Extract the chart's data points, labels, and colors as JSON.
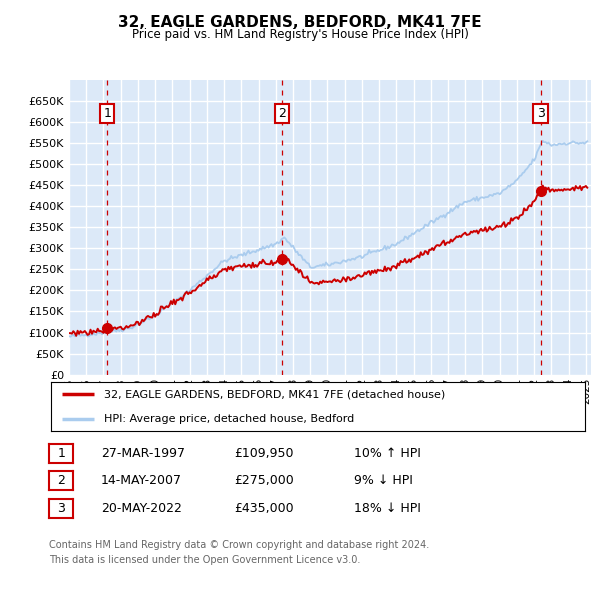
{
  "title": "32, EAGLE GARDENS, BEDFORD, MK41 7FE",
  "subtitle": "Price paid vs. HM Land Registry's House Price Index (HPI)",
  "legend_line1": "32, EAGLE GARDENS, BEDFORD, MK41 7FE (detached house)",
  "legend_line2": "HPI: Average price, detached house, Bedford",
  "transactions": [
    {
      "label": "1",
      "date": "27-MAR-1997",
      "price": 109950,
      "price_str": "£109,950",
      "hpi_pct": "10% ↑ HPI",
      "year": 1997.23
    },
    {
      "label": "2",
      "date": "14-MAY-2007",
      "price": 275000,
      "price_str": "£275,000",
      "hpi_pct": "9% ↓ HPI",
      "year": 2007.37
    },
    {
      "label": "3",
      "date": "20-MAY-2022",
      "price": 435000,
      "price_str": "£435,000",
      "hpi_pct": "18% ↓ HPI",
      "year": 2022.37
    }
  ],
  "footnote1": "Contains HM Land Registry data © Crown copyright and database right 2024.",
  "footnote2": "This data is licensed under the Open Government Licence v3.0.",
  "ylim": [
    0,
    700000
  ],
  "yticks": [
    0,
    50000,
    100000,
    150000,
    200000,
    250000,
    300000,
    350000,
    400000,
    450000,
    500000,
    550000,
    600000,
    650000
  ],
  "background_color": "#dce9f8",
  "plot_bg": "#dce9f8",
  "grid_color": "#ffffff",
  "line_color_property": "#cc0000",
  "line_color_hpi": "#aaccee",
  "dot_color": "#cc0000",
  "vline_color": "#cc0000",
  "box_color": "#cc0000"
}
